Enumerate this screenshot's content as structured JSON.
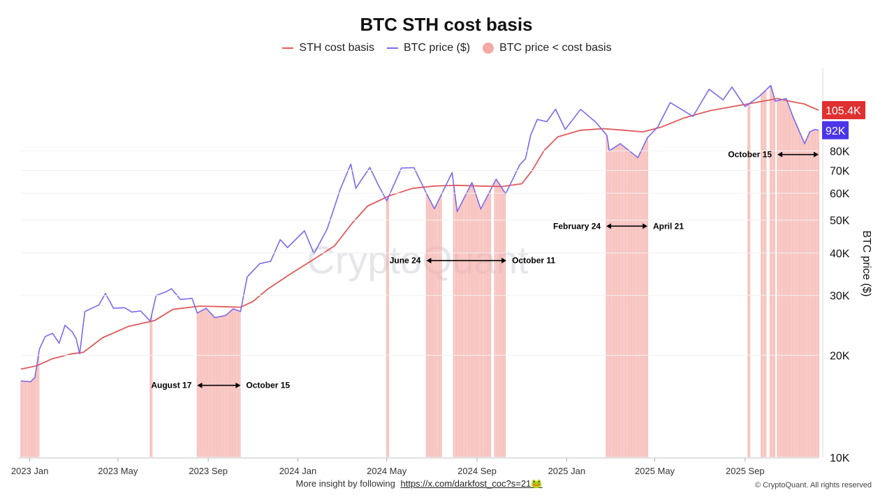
{
  "chart_data": {
    "type": "line",
    "title": "BTC STH cost basis",
    "ylabel": "BTC price ($)",
    "yscale": "log",
    "ylim": [
      10000,
      140000
    ],
    "xlim": [
      "2022-12-20",
      "2025-12-10"
    ],
    "legend": [
      {
        "label": "STH cost basis",
        "color": "#e05a5a",
        "kind": "line"
      },
      {
        "label": "BTC price ($)",
        "color": "#7b68ee",
        "kind": "line"
      },
      {
        "label": "BTC price < cost basis",
        "color": "#f4a9a3",
        "kind": "dot"
      }
    ],
    "x_ticks": [
      {
        "date": "2023-01-01",
        "label": "2023 Jan"
      },
      {
        "date": "2023-05-01",
        "label": "2023 May"
      },
      {
        "date": "2023-09-01",
        "label": "2023 Sep"
      },
      {
        "date": "2024-01-01",
        "label": "2024 Jan"
      },
      {
        "date": "2024-05-01",
        "label": "2024 May"
      },
      {
        "date": "2024-09-01",
        "label": "2024 Sep"
      },
      {
        "date": "2025-01-01",
        "label": "2025 Jan"
      },
      {
        "date": "2025-05-01",
        "label": "2025 May"
      },
      {
        "date": "2025-09-01",
        "label": "2025 Sep"
      }
    ],
    "y_ticks": [
      {
        "value": 10000,
        "label": "10K"
      },
      {
        "value": 20000,
        "label": "20K"
      },
      {
        "value": 30000,
        "label": "30K"
      },
      {
        "value": 40000,
        "label": "40K"
      },
      {
        "value": 50000,
        "label": "50K"
      },
      {
        "value": 60000,
        "label": "60K"
      },
      {
        "value": 70000,
        "label": "70K"
      },
      {
        "value": 80000,
        "label": "80K"
      }
    ],
    "series": [
      {
        "name": "STH cost basis",
        "color": "#e05a5a",
        "points": [
          [
            "2022-12-20",
            18200
          ],
          [
            "2023-01-10",
            18600
          ],
          [
            "2023-01-31",
            19500
          ],
          [
            "2023-02-28",
            20200
          ],
          [
            "2023-03-15",
            20400
          ],
          [
            "2023-04-10",
            22500
          ],
          [
            "2023-05-15",
            24300
          ],
          [
            "2023-06-20",
            25300
          ],
          [
            "2023-07-15",
            27300
          ],
          [
            "2023-08-20",
            27900
          ],
          [
            "2023-09-20",
            27800
          ],
          [
            "2023-10-15",
            27700
          ],
          [
            "2023-11-01",
            28800
          ],
          [
            "2023-11-20",
            31200
          ],
          [
            "2023-12-20",
            34500
          ],
          [
            "2024-01-20",
            38000
          ],
          [
            "2024-02-20",
            42000
          ],
          [
            "2024-03-15",
            49000
          ],
          [
            "2024-04-05",
            55000
          ],
          [
            "2024-05-05",
            59000
          ],
          [
            "2024-06-05",
            62000
          ],
          [
            "2024-07-05",
            63000
          ],
          [
            "2024-08-05",
            63300
          ],
          [
            "2024-09-05",
            63000
          ],
          [
            "2024-10-05",
            62800
          ],
          [
            "2024-11-01",
            64000
          ],
          [
            "2024-11-15",
            70000
          ],
          [
            "2024-12-01",
            80000
          ],
          [
            "2024-12-20",
            88000
          ],
          [
            "2025-01-20",
            92000
          ],
          [
            "2025-02-20",
            93000
          ],
          [
            "2025-03-20",
            92000
          ],
          [
            "2025-04-15",
            91000
          ],
          [
            "2025-05-10",
            94000
          ],
          [
            "2025-06-10",
            100000
          ],
          [
            "2025-07-15",
            105000
          ],
          [
            "2025-08-15",
            108000
          ],
          [
            "2025-09-15",
            111000
          ],
          [
            "2025-10-15",
            114000
          ],
          [
            "2025-11-10",
            111000
          ],
          [
            "2025-11-20",
            110000
          ],
          [
            "2025-12-10",
            105400
          ]
        ]
      },
      {
        "name": "BTC price ($)",
        "color": "#7b68ee",
        "points": [
          [
            "2022-12-20",
            16800
          ],
          [
            "2023-01-02",
            16700
          ],
          [
            "2023-01-08",
            17200
          ],
          [
            "2023-01-14",
            20800
          ],
          [
            "2023-01-22",
            22700
          ],
          [
            "2023-02-01",
            23200
          ],
          [
            "2023-02-10",
            21700
          ],
          [
            "2023-02-18",
            24500
          ],
          [
            "2023-02-28",
            23400
          ],
          [
            "2023-03-05",
            22400
          ],
          [
            "2023-03-10",
            20200
          ],
          [
            "2023-03-17",
            26900
          ],
          [
            "2023-03-28",
            27600
          ],
          [
            "2023-04-05",
            28100
          ],
          [
            "2023-04-14",
            30400
          ],
          [
            "2023-04-25",
            27500
          ],
          [
            "2023-05-10",
            27600
          ],
          [
            "2023-05-20",
            26800
          ],
          [
            "2023-06-01",
            27000
          ],
          [
            "2023-06-14",
            25200
          ],
          [
            "2023-06-22",
            30000
          ],
          [
            "2023-07-05",
            30700
          ],
          [
            "2023-07-13",
            31400
          ],
          [
            "2023-07-25",
            29200
          ],
          [
            "2023-08-10",
            29400
          ],
          [
            "2023-08-17",
            26600
          ],
          [
            "2023-08-29",
            27500
          ],
          [
            "2023-09-10",
            25800
          ],
          [
            "2023-09-25",
            26200
          ],
          [
            "2023-10-05",
            27400
          ],
          [
            "2023-10-15",
            26900
          ],
          [
            "2023-10-24",
            34000
          ],
          [
            "2023-11-10",
            37200
          ],
          [
            "2023-11-25",
            37800
          ],
          [
            "2023-12-08",
            43800
          ],
          [
            "2023-12-18",
            41500
          ],
          [
            "2024-01-10",
            46500
          ],
          [
            "2024-01-23",
            39800
          ],
          [
            "2024-02-10",
            47100
          ],
          [
            "2024-02-28",
            61800
          ],
          [
            "2024-03-13",
            73100
          ],
          [
            "2024-03-20",
            62100
          ],
          [
            "2024-04-08",
            71500
          ],
          [
            "2024-04-19",
            63800
          ],
          [
            "2024-05-01",
            57000
          ],
          [
            "2024-05-21",
            71200
          ],
          [
            "2024-06-07",
            71400
          ],
          [
            "2024-06-24",
            60000
          ],
          [
            "2024-07-05",
            54000
          ],
          [
            "2024-07-29",
            69000
          ],
          [
            "2024-08-05",
            53000
          ],
          [
            "2024-08-25",
            64500
          ],
          [
            "2024-09-06",
            53900
          ],
          [
            "2024-09-27",
            66000
          ],
          [
            "2024-10-10",
            59800
          ],
          [
            "2024-10-29",
            72700
          ],
          [
            "2024-11-06",
            75800
          ],
          [
            "2024-11-13",
            89000
          ],
          [
            "2024-11-22",
            99000
          ],
          [
            "2024-12-05",
            97500
          ],
          [
            "2024-12-17",
            106100
          ],
          [
            "2024-12-30",
            92500
          ],
          [
            "2025-01-20",
            106000
          ],
          [
            "2025-02-10",
            97000
          ],
          [
            "2025-02-25",
            88700
          ],
          [
            "2025-02-28",
            80000
          ],
          [
            "2025-03-15",
            84000
          ],
          [
            "2025-04-08",
            76400
          ],
          [
            "2025-04-21",
            87500
          ],
          [
            "2025-05-05",
            94000
          ],
          [
            "2025-05-22",
            111000
          ],
          [
            "2025-06-22",
            101000
          ],
          [
            "2025-07-14",
            121500
          ],
          [
            "2025-08-02",
            113000
          ],
          [
            "2025-08-14",
            123300
          ],
          [
            "2025-09-01",
            108000
          ],
          [
            "2025-09-20",
            115600
          ],
          [
            "2025-10-06",
            124700
          ],
          [
            "2025-10-12",
            112000
          ],
          [
            "2025-10-27",
            114000
          ],
          [
            "2025-11-05",
            101000
          ],
          [
            "2025-11-21",
            84000
          ],
          [
            "2025-11-28",
            91000
          ],
          [
            "2025-12-05",
            92500
          ],
          [
            "2025-12-10",
            92000
          ]
        ]
      }
    ],
    "below_cost_basis_periods": [
      [
        "2022-12-20",
        "2023-01-13"
      ],
      [
        "2023-06-14",
        "2023-06-16"
      ],
      [
        "2023-08-17",
        "2023-10-15"
      ],
      [
        "2024-05-01",
        "2024-05-03"
      ],
      [
        "2024-06-24",
        "2024-07-14"
      ],
      [
        "2024-07-31",
        "2024-09-19"
      ],
      [
        "2024-09-25",
        "2024-10-09"
      ],
      [
        "2025-02-24",
        "2025-04-21"
      ],
      [
        "2025-09-05",
        "2025-09-07"
      ],
      [
        "2025-09-23",
        "2025-09-29"
      ],
      [
        "2025-10-05",
        "2025-10-11"
      ],
      [
        "2025-10-15",
        "2025-12-10"
      ]
    ],
    "annotations": [
      {
        "from": "2023-08-17",
        "to": "2023-10-15",
        "start_label": "August 17",
        "end_label": "October 15",
        "price_level": 16300
      },
      {
        "from": "2024-06-24",
        "to": "2024-10-11",
        "start_label": "June 24",
        "end_label": "October 11",
        "price_level": 38000
      },
      {
        "from": "2025-02-24",
        "to": "2025-04-21",
        "start_label": "February 24",
        "end_label": "April 21",
        "price_level": 48000
      },
      {
        "from": "2025-10-15",
        "to": "2025-12-10",
        "start_label": "October 15",
        "end_label": "",
        "price_level": 78000
      }
    ],
    "last_value_badges": [
      {
        "series": "STH cost basis",
        "label": "105.4K",
        "value": 105400,
        "color": "#e03030"
      },
      {
        "series": "BTC price ($)",
        "label": "92K",
        "value": 92000,
        "color": "#4a36e8"
      }
    ],
    "watermark": "CryptoQuant"
  },
  "footer": {
    "text": "More insight by following",
    "link": "https://x.com/darkfost_coc?s=21🐸",
    "copyright": "© CryptoQuant. All rights reserved"
  }
}
